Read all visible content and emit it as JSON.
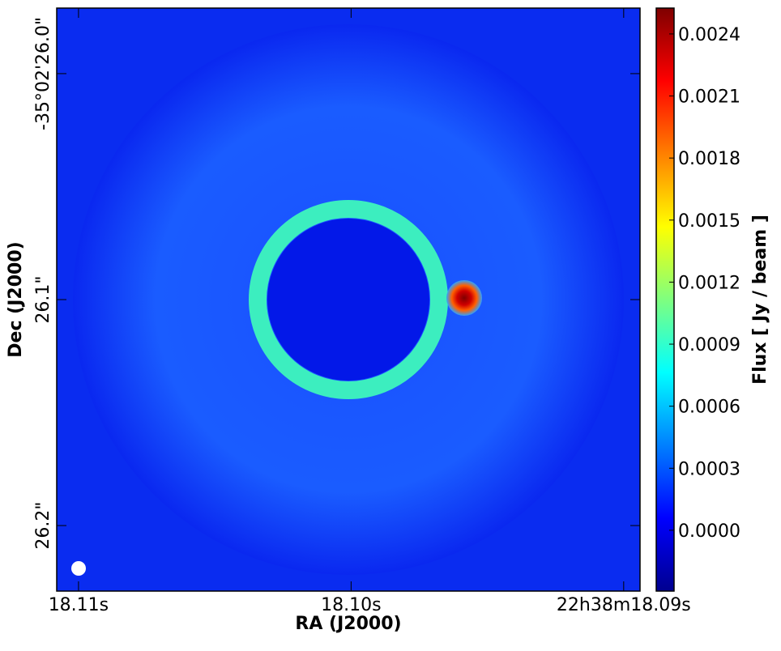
{
  "chart_data": {
    "type": "image",
    "xlabel": "RA (J2000)",
    "ylabel": "Dec (J2000)",
    "xlim": [
      18.1108,
      18.0894
    ],
    "xticks": [
      {
        "value": 18.11,
        "label": "18.11s"
      },
      {
        "value": 18.1,
        "label": "18.10s"
      },
      {
        "value": 18.09,
        "label": "22h38m18.09s"
      }
    ],
    "ylim": [
      26.229,
      25.971
    ],
    "yticks": [
      {
        "value": 26.0,
        "label": "-35°02'26.0\""
      },
      {
        "value": 26.1,
        "label": "26.1\""
      },
      {
        "value": 26.2,
        "label": "26.2\""
      }
    ],
    "colorbar": {
      "label": "Flux [ Jy / beam ]",
      "lim": [
        -0.000294,
        0.002525
      ],
      "ticks": [
        {
          "value": 0.0,
          "label": "0.0000"
        },
        {
          "value": 0.0003,
          "label": "0.0003"
        },
        {
          "value": 0.0006,
          "label": "0.0006"
        },
        {
          "value": 0.0009,
          "label": "0.0009"
        },
        {
          "value": 0.0012,
          "label": "0.0012"
        },
        {
          "value": 0.0015,
          "label": "0.0015"
        },
        {
          "value": 0.0018,
          "label": "0.0018"
        },
        {
          "value": 0.0021,
          "label": "0.0021"
        },
        {
          "value": 0.0024,
          "label": "0.0024"
        }
      ]
    }
  }
}
